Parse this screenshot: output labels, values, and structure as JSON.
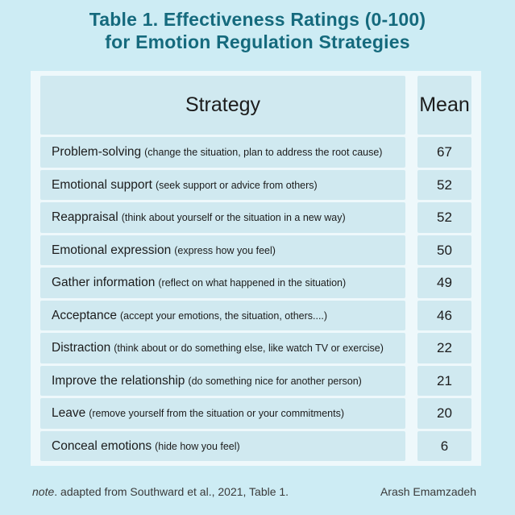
{
  "title": {
    "line1": "Table 1. Effectiveness Ratings (0-100)",
    "line2": "for Emotion Regulation Strategies"
  },
  "table": {
    "columns": [
      "Strategy",
      "Mean"
    ],
    "rows": [
      {
        "strategy": "Problem-solving",
        "description": "(change the situation, plan to address the root cause)",
        "mean": "67"
      },
      {
        "strategy": "Emotional support",
        "description": "(seek support or advice from others)",
        "mean": "52"
      },
      {
        "strategy": "Reappraisal",
        "description": "(think about yourself or the situation in a new way)",
        "mean": "52"
      },
      {
        "strategy": "Emotional expression",
        "description": "(express how you feel)",
        "mean": "50"
      },
      {
        "strategy": "Gather information",
        "description": "(reflect on what happened in the situation)",
        "mean": "49"
      },
      {
        "strategy": "Acceptance",
        "description": "(accept your emotions, the situation, others....)",
        "mean": "46"
      },
      {
        "strategy": "Distraction",
        "description": "(think about or do something else, like watch TV or exercise)",
        "mean": "22"
      },
      {
        "strategy": "Improve the relationship",
        "description": "(do something nice for another person)",
        "mean": "21"
      },
      {
        "strategy": "Leave",
        "description": "(remove yourself from the situation or your commitments)",
        "mean": "20"
      },
      {
        "strategy": "Conceal emotions",
        "description": "(hide how you feel)",
        "mean": "6"
      }
    ]
  },
  "footer": {
    "note_word": "note",
    "note_rest": ". adapted from Southward et al., 2021, Table 1.",
    "author": "Arash Emamzadeh"
  },
  "colors": {
    "page_background": "#cdecf4",
    "card_background": "#eef8fb",
    "cell_background": "#d0e9f0",
    "title_text": "#156a7d",
    "body_text": "#1c1c1c",
    "footer_text": "#3a3a3a"
  },
  "chart_data": {
    "type": "table",
    "title": "Table 1. Effectiveness Ratings (0-100) for Emotion Regulation Strategies",
    "columns": [
      "Strategy",
      "Mean"
    ],
    "categories": [
      "Problem-solving",
      "Emotional support",
      "Reappraisal",
      "Emotional expression",
      "Gather information",
      "Acceptance",
      "Distraction",
      "Improve the relationship",
      "Leave",
      "Conceal emotions"
    ],
    "values": [
      67,
      52,
      52,
      50,
      49,
      46,
      22,
      21,
      20,
      6
    ],
    "value_range": [
      0,
      100
    ],
    "source_note": "note. adapted from Southward et al., 2021, Table 1.",
    "credit": "Arash Emamzadeh"
  }
}
